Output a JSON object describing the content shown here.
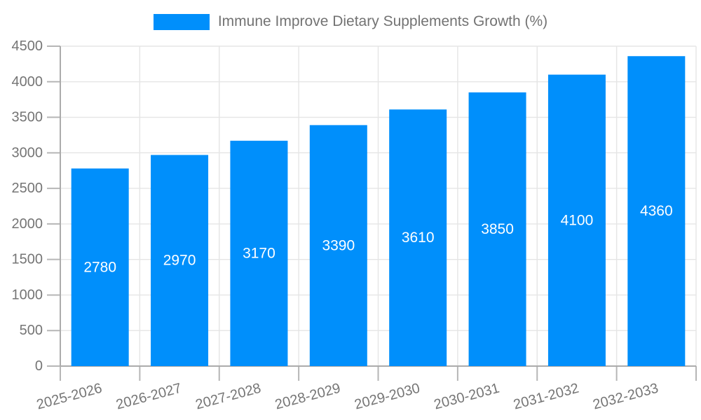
{
  "legend": {
    "label": "Immune Improve Dietary Supplements Growth (%)",
    "position": "top"
  },
  "chart_data": {
    "type": "bar",
    "title": "Immune Improve Dietary Supplements Growth (%)",
    "series_name": "Immune Improve Dietary Supplements Growth (%)",
    "categories": [
      "2025-2026",
      "2026-2027",
      "2027-2028",
      "2028-2029",
      "2029-2030",
      "2030-2031",
      "2031-2032",
      "2032-2033"
    ],
    "values": [
      2780,
      2970,
      3170,
      3390,
      3610,
      3850,
      4100,
      4360
    ],
    "value_labels": [
      "2780",
      "2970",
      "3170",
      "3390",
      "3610",
      "3850",
      "4100",
      "4360"
    ],
    "yticks": [
      0,
      500,
      1000,
      1500,
      2000,
      2500,
      3000,
      3500,
      4000,
      4500
    ],
    "ylim": [
      0,
      4500
    ],
    "xlabel": "",
    "ylabel": "",
    "grid": true,
    "legend_position": "top",
    "x_label_rotation_deg": -15,
    "colors": {
      "bar": "#008FFB",
      "value_label": "#ffffff",
      "axis_text": "#757575",
      "legend_text": "#737373",
      "gridline": "#e5e5e5",
      "axis_line": "#ababab",
      "tick": "#b6b6b6",
      "background": "#ffffff"
    }
  }
}
